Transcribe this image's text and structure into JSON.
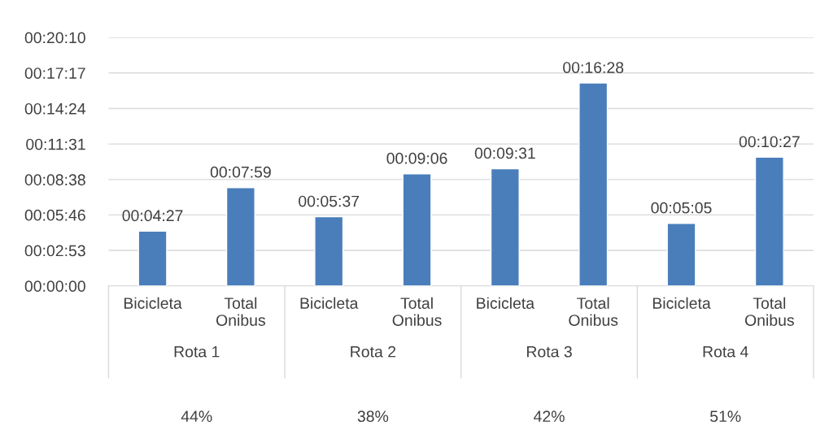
{
  "chart_data": {
    "type": "bar",
    "categories": [
      "Bicicleta",
      "Total Onibus",
      "Bicicleta",
      "Total Onibus",
      "Bicicleta",
      "Total Onibus",
      "Bicicleta",
      "Total Onibus"
    ],
    "values": [
      267,
      479,
      337,
      546,
      571,
      988,
      305,
      627
    ],
    "value_labels": [
      "00:04:27",
      "00:07:59",
      "00:05:37",
      "00:09:06",
      "00:09:31",
      "00:16:28",
      "00:05:05",
      "00:10:27"
    ],
    "color": "#4a7ebb",
    "ylim": [
      0,
      1210
    ],
    "yticks": [
      {
        "value": 0,
        "label": "00:00:00"
      },
      {
        "value": 173,
        "label": "00:02:53"
      },
      {
        "value": 346,
        "label": "00:05:46"
      },
      {
        "value": 518,
        "label": "00:08:38"
      },
      {
        "value": 691,
        "label": "00:11:31"
      },
      {
        "value": 864,
        "label": "00:14:24"
      },
      {
        "value": 1037,
        "label": "00:17:17"
      },
      {
        "value": 1210,
        "label": "00:20:10"
      }
    ],
    "grid": "y",
    "annotations": [
      "Rota 1",
      "Rota 2",
      "Rota 3",
      "Rota 4",
      "44%",
      "38%",
      "42%",
      "51%"
    ]
  }
}
